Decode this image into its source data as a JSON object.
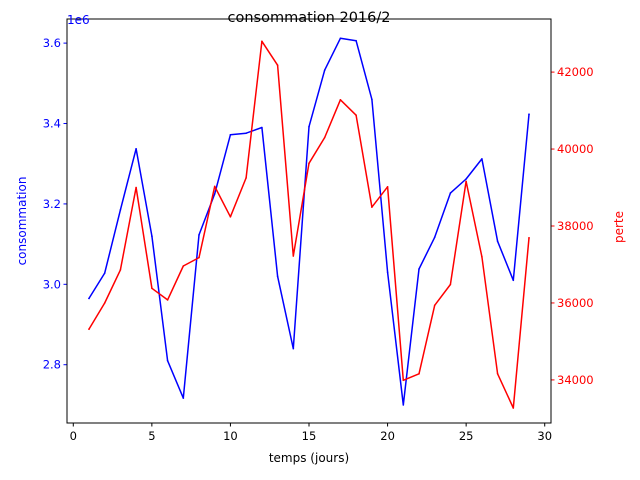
{
  "chart_data": {
    "type": "line",
    "title": "consommation 2016/2",
    "xlabel": "temps (jours)",
    "xlim": [
      -0.4,
      30.4
    ],
    "xticks": [
      0,
      5,
      10,
      15,
      20,
      25,
      30
    ],
    "y_left": {
      "label": "consommation",
      "color": "#0000ff",
      "offset_label": "1e6",
      "ylim": [
        2.655,
        3.66
      ],
      "ticks": [
        2.8,
        3.0,
        3.2,
        3.4,
        3.6
      ],
      "tick_labels": [
        "2.8",
        "3.0",
        "3.2",
        "3.4",
        "3.6"
      ]
    },
    "y_right": {
      "label": "perte",
      "color": "#ff0000",
      "ylim": [
        32880,
        43380
      ],
      "ticks": [
        34000,
        36000,
        38000,
        40000,
        42000
      ],
      "tick_labels": [
        "34000",
        "36000",
        "38000",
        "40000",
        "42000"
      ]
    },
    "x": [
      1,
      2,
      3,
      4,
      5,
      6,
      7,
      8,
      9,
      10,
      11,
      12,
      13,
      14,
      15,
      16,
      17,
      18,
      19,
      20,
      21,
      22,
      23,
      24,
      25,
      26,
      27,
      28,
      29
    ],
    "series": [
      {
        "axis": "left",
        "color": "#0000ff",
        "values": [
          2.965,
          3.028,
          3.185,
          3.337,
          3.12,
          2.81,
          2.717,
          3.123,
          3.225,
          3.372,
          3.376,
          3.39,
          3.02,
          2.84,
          3.392,
          3.533,
          3.612,
          3.606,
          3.46,
          3.03,
          2.7,
          3.038,
          3.117,
          3.227,
          3.262,
          3.312,
          3.107,
          3.01,
          3.423
        ]
      },
      {
        "axis": "right",
        "color": "#ff0000",
        "values": [
          35320,
          36000,
          36860,
          39000,
          36380,
          36080,
          36960,
          37180,
          39030,
          38240,
          39250,
          42800,
          42180,
          37220,
          39630,
          40300,
          41280,
          40880,
          38490,
          39020,
          33990,
          34160,
          35940,
          36480,
          39160,
          37200,
          34160,
          33270,
          37690
        ]
      }
    ]
  }
}
